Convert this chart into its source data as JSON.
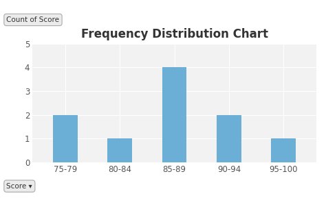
{
  "title": "Frequency Distribution Chart",
  "categories": [
    "75-79",
    "80-84",
    "85-89",
    "90-94",
    "95-100"
  ],
  "values": [
    2,
    1,
    4,
    2,
    1
  ],
  "bar_color": "#6BAED6",
  "figure_bg_color": "#FFFFFF",
  "plot_bg_color": "#F2F2F2",
  "grid_color": "#FFFFFF",
  "ylim": [
    0,
    5
  ],
  "yticks": [
    0,
    1,
    2,
    3,
    4,
    5
  ],
  "title_fontsize": 12,
  "tick_fontsize": 8.5,
  "ylabel_button_text": "Count of Score",
  "xlabel_button_text": "Score ▾",
  "bar_width": 0.45,
  "title_color": "#333333",
  "tick_color": "#555555"
}
